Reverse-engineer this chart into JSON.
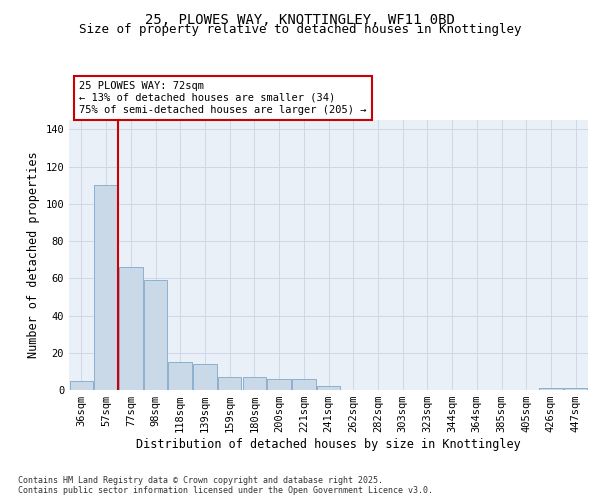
{
  "title_line1": "25, PLOWES WAY, KNOTTINGLEY, WF11 0BD",
  "title_line2": "Size of property relative to detached houses in Knottingley",
  "xlabel": "Distribution of detached houses by size in Knottingley",
  "ylabel": "Number of detached properties",
  "bin_labels": [
    "36sqm",
    "57sqm",
    "77sqm",
    "98sqm",
    "118sqm",
    "139sqm",
    "159sqm",
    "180sqm",
    "200sqm",
    "221sqm",
    "241sqm",
    "262sqm",
    "282sqm",
    "303sqm",
    "323sqm",
    "344sqm",
    "364sqm",
    "385sqm",
    "405sqm",
    "426sqm",
    "447sqm"
  ],
  "values": [
    5,
    110,
    66,
    59,
    15,
    14,
    7,
    7,
    6,
    6,
    2,
    0,
    0,
    0,
    0,
    0,
    0,
    0,
    0,
    1,
    1
  ],
  "bar_color": "#c9d9e8",
  "bar_edge_color": "#7fa8c9",
  "grid_color": "#d0d8e8",
  "background_color": "#eaf0f8",
  "red_line_color": "#cc0000",
  "annotation_text": "25 PLOWES WAY: 72sqm\n← 13% of detached houses are smaller (34)\n75% of semi-detached houses are larger (205) →",
  "annotation_box_color": "#cc0000",
  "ylim": [
    0,
    145
  ],
  "yticks": [
    0,
    20,
    40,
    60,
    80,
    100,
    120,
    140
  ],
  "footnote": "Contains HM Land Registry data © Crown copyright and database right 2025.\nContains public sector information licensed under the Open Government Licence v3.0.",
  "title_fontsize": 10,
  "subtitle_fontsize": 9,
  "axis_label_fontsize": 8.5,
  "tick_fontsize": 7.5,
  "annotation_fontsize": 7.5
}
